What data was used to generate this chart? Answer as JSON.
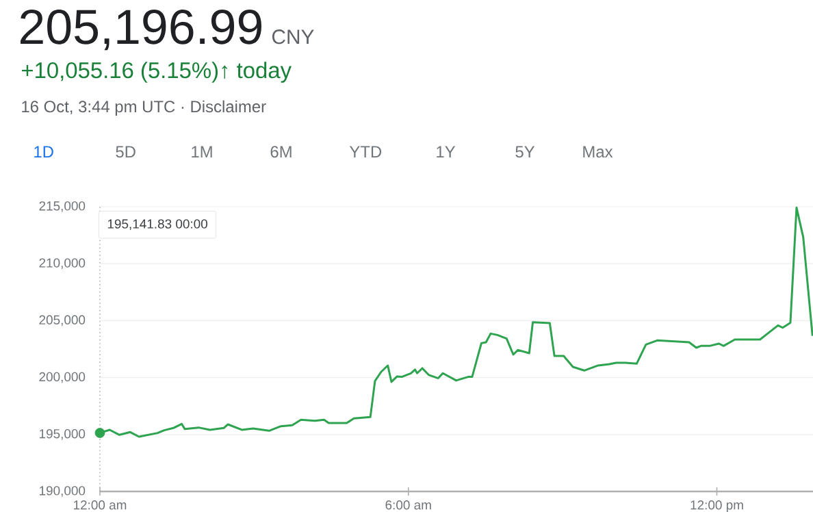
{
  "chart_data": {
    "type": "line",
    "title": "205,196.99",
    "annotations": [
      "CNY",
      "+10,055.16 (5.15%)↑ today",
      "16 Oct, 3:44 pm UTC · Disclaimer",
      "1D",
      "5D",
      "1M",
      "6M",
      "YTD",
      "1Y",
      "5Y",
      "Max",
      "195,141.83 00:00"
    ],
    "xlim": [
      0,
      13.87
    ],
    "xticks": [
      {
        "value": 0,
        "label": "12:00 am"
      },
      {
        "value": 6,
        "label": "6:00 am"
      },
      {
        "value": 12,
        "label": "12:00 pm"
      }
    ],
    "ylim": [
      190000,
      215000
    ],
    "yticks": [
      {
        "value": 190000,
        "label": "190,000"
      },
      {
        "value": 195000,
        "label": "195,000"
      },
      {
        "value": 200000,
        "label": "200,000"
      },
      {
        "value": 205000,
        "label": "205,000"
      },
      {
        "value": 210000,
        "label": "210,000"
      },
      {
        "value": 215000,
        "label": "215,000"
      }
    ],
    "grid": "y",
    "ref_lines": [
      {
        "axis": "x",
        "value": 0,
        "color": "#9aa0a6",
        "line_style": "dotted"
      }
    ],
    "series": [
      {
        "color": "#2ea350",
        "line_style": "solid",
        "marker": "none",
        "x": [
          0,
          0.19,
          0.38,
          0.59,
          0.76,
          0.94,
          1.12,
          1.25,
          1.43,
          1.59,
          1.65,
          1.92,
          2.14,
          2.41,
          2.49,
          2.76,
          2.98,
          3.29,
          3.52,
          3.74,
          3.91,
          4.18,
          4.36,
          4.45,
          4.8,
          4.94,
          5.26,
          5.35,
          5.47,
          5.6,
          5.67,
          5.78,
          5.87,
          6.05,
          6.13,
          6.17,
          6.27,
          6.4,
          6.58,
          6.67,
          6.93,
          7.16,
          7.24,
          7.42,
          7.51,
          7.6,
          7.73,
          7.91,
          8.04,
          8.13,
          8.35,
          8.42,
          8.75,
          8.84,
          9.02,
          9.2,
          9.42,
          9.69,
          9.91,
          10.04,
          10.22,
          10.44,
          10.62,
          10.84,
          11.46,
          11.6,
          11.69,
          11.86,
          12.04,
          12.13,
          12.35,
          12.84,
          13.02,
          13.19,
          13.28,
          13.43,
          13.55,
          13.68,
          13.86
        ],
        "values": [
          195141.83,
          195410,
          194970,
          195210,
          194810,
          194970,
          195130,
          195370,
          195570,
          195930,
          195490,
          195610,
          195410,
          195570,
          195890,
          195410,
          195530,
          195330,
          195730,
          195810,
          196290,
          196210,
          196290,
          196010,
          196010,
          196410,
          196530,
          199700,
          200500,
          201060,
          199620,
          200100,
          200060,
          200380,
          200700,
          200380,
          200820,
          200220,
          199940,
          200380,
          199740,
          200060,
          200060,
          203020,
          203100,
          203860,
          203740,
          203420,
          202020,
          202420,
          202140,
          204860,
          204780,
          201900,
          201900,
          200940,
          200620,
          201060,
          201180,
          201300,
          201300,
          201220,
          202900,
          203260,
          203100,
          202620,
          202780,
          202780,
          202980,
          202780,
          203340,
          203340,
          203980,
          204580,
          204380,
          204820,
          214920,
          212320,
          203660
        ]
      },
      {
        "type": "scatter",
        "color": "#2ea350",
        "marker": "circle",
        "x": [
          0
        ],
        "values": [
          195141.83
        ]
      }
    ]
  }
}
